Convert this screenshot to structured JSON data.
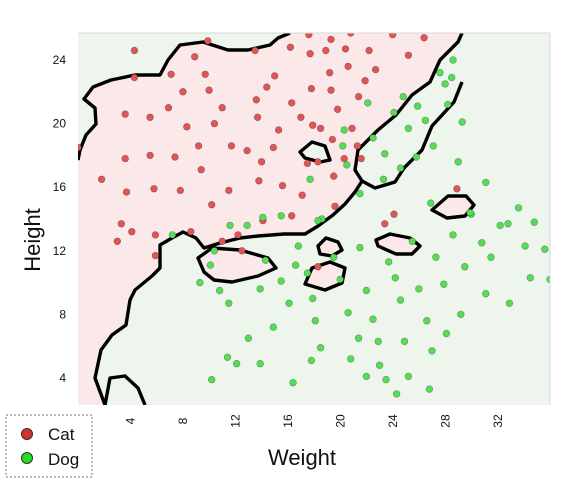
{
  "chart_data": {
    "type": "scatter",
    "xlabel": "Weight",
    "ylabel": "Height",
    "xlim": [
      0,
      36
    ],
    "ylim": [
      2.3,
      25.7
    ],
    "x_ticks": [
      4,
      8,
      12,
      16,
      20,
      24,
      28,
      32
    ],
    "y_ticks": [
      4,
      8,
      12,
      16,
      20,
      24
    ],
    "grid": false,
    "legend_position": "bottom-left",
    "colors": {
      "Cat": "#e05555",
      "Dog": "#55dd55",
      "cat_region": "#fbe9e9",
      "dog_region": "#edf5ec",
      "boundary": "#000000"
    },
    "series": [
      {
        "name": "Cat",
        "points": [
          [
            0,
            18.5
          ],
          [
            1.8,
            16.5
          ],
          [
            3,
            12.6
          ],
          [
            3.3,
            13.7
          ],
          [
            3.6,
            20.6
          ],
          [
            3.6,
            17.8
          ],
          [
            3.7,
            15.7
          ],
          [
            4.1,
            13.2
          ],
          [
            4.3,
            24.6
          ],
          [
            4.3,
            22.9
          ],
          [
            5.5,
            20.4
          ],
          [
            5.5,
            18.0
          ],
          [
            5.8,
            15.9
          ],
          [
            5.9,
            13.0
          ],
          [
            5.9,
            11.7
          ],
          [
            6.9,
            21.0
          ],
          [
            7.1,
            23.1
          ],
          [
            7.4,
            17.9
          ],
          [
            7.8,
            15.8
          ],
          [
            8.0,
            22.0
          ],
          [
            8.3,
            19.8
          ],
          [
            8.6,
            13.2
          ],
          [
            8.9,
            24.2
          ],
          [
            9.2,
            18.6
          ],
          [
            9.4,
            17.1
          ],
          [
            9.7,
            23.1
          ],
          [
            9.9,
            25.2
          ],
          [
            10.0,
            22.1
          ],
          [
            10.2,
            14.9
          ],
          [
            10.4,
            20.0
          ],
          [
            11.0,
            21.0
          ],
          [
            11.5,
            15.8
          ],
          [
            11.7,
            18.6
          ],
          [
            11.0,
            12.6
          ],
          [
            12.2,
            13.0
          ],
          [
            12.5,
            12.0
          ],
          [
            12.9,
            18.3
          ],
          [
            13.5,
            24.6
          ],
          [
            13.6,
            21.5
          ],
          [
            13.7,
            20.4
          ],
          [
            13.8,
            16.4
          ],
          [
            14.0,
            17.6
          ],
          [
            14.1,
            13.9
          ],
          [
            14.4,
            22.3
          ],
          [
            14.9,
            18.5
          ],
          [
            15.0,
            23.0
          ],
          [
            15.3,
            19.6
          ],
          [
            15.6,
            16.1
          ],
          [
            16.2,
            24.8
          ],
          [
            16.3,
            21.3
          ],
          [
            16.3,
            14.2
          ],
          [
            17.0,
            20.4
          ],
          [
            17.1,
            15.5
          ],
          [
            17.5,
            17.5
          ],
          [
            17.6,
            25.6
          ],
          [
            17.7,
            24.4
          ],
          [
            17.8,
            22.2
          ],
          [
            18.3,
            17.6
          ],
          [
            18.5,
            19.7
          ],
          [
            18.9,
            24.6
          ],
          [
            19.2,
            23.2
          ],
          [
            19.3,
            25.3
          ],
          [
            19.3,
            22.1
          ],
          [
            19.4,
            19.0
          ],
          [
            19.5,
            16.7
          ],
          [
            19.6,
            14.8
          ],
          [
            19.8,
            20.9
          ],
          [
            20.3,
            17.8
          ],
          [
            20.4,
            24.7
          ],
          [
            20.6,
            23.6
          ],
          [
            20.8,
            25.7
          ],
          [
            20.9,
            19.7
          ],
          [
            21.3,
            18.6
          ],
          [
            21.4,
            21.7
          ],
          [
            21.9,
            22.7
          ],
          [
            22.2,
            24.6
          ],
          [
            22.7,
            23.4
          ],
          [
            23.4,
            13.7
          ],
          [
            24.0,
            25.6
          ],
          [
            25.2,
            24.3
          ],
          [
            26.4,
            25.4
          ],
          [
            17.9,
            19.9
          ],
          [
            18.3,
            11.0
          ],
          [
            28.9,
            15.9
          ],
          [
            24.1,
            14.3
          ],
          [
            21.6,
            17.8
          ]
        ]
      },
      {
        "name": "Dog",
        "points": [
          [
            10.8,
            9.5
          ],
          [
            11.5,
            8.7
          ],
          [
            12.1,
            4.9
          ],
          [
            13.9,
            9.6
          ],
          [
            14.9,
            7.2
          ],
          [
            13.0,
            6.5
          ],
          [
            15.5,
            10.1
          ],
          [
            16.1,
            8.7
          ],
          [
            16.8,
            12.3
          ],
          [
            17.5,
            10.6
          ],
          [
            17.9,
            9.0
          ],
          [
            18.1,
            7.6
          ],
          [
            18.5,
            5.9
          ],
          [
            19.5,
            11.6
          ],
          [
            20.0,
            10.2
          ],
          [
            20.6,
            8.1
          ],
          [
            20.8,
            5.2
          ],
          [
            21.5,
            12.2
          ],
          [
            22.0,
            9.5
          ],
          [
            22.5,
            7.7
          ],
          [
            22.9,
            6.3
          ],
          [
            23.0,
            4.8
          ],
          [
            23.5,
            3.9
          ],
          [
            23.7,
            11.3
          ],
          [
            24.2,
            10.3
          ],
          [
            24.6,
            8.9
          ],
          [
            24.9,
            6.3
          ],
          [
            25.2,
            4.1
          ],
          [
            25.5,
            12.6
          ],
          [
            26.0,
            9.6
          ],
          [
            26.6,
            7.6
          ],
          [
            27.0,
            5.7
          ],
          [
            27.3,
            11.6
          ],
          [
            27.9,
            9.9
          ],
          [
            28.1,
            6.8
          ],
          [
            28.6,
            13.0
          ],
          [
            29.2,
            8.0
          ],
          [
            29.5,
            11.0
          ],
          [
            30.0,
            14.3
          ],
          [
            30.8,
            12.5
          ],
          [
            31.1,
            9.3
          ],
          [
            31.5,
            11.6
          ],
          [
            32.2,
            13.6
          ],
          [
            32.9,
            8.7
          ],
          [
            33.6,
            14.7
          ],
          [
            34.1,
            12.3
          ],
          [
            34.8,
            13.8
          ],
          [
            35.6,
            12.1
          ],
          [
            36.0,
            10.2
          ],
          [
            34.5,
            10.3
          ],
          [
            20.2,
            18.6
          ],
          [
            20.5,
            17.4
          ],
          [
            21.5,
            15.6
          ],
          [
            22.5,
            19.1
          ],
          [
            23.4,
            18.1
          ],
          [
            24.1,
            20.7
          ],
          [
            24.6,
            17.2
          ],
          [
            25.2,
            19.7
          ],
          [
            25.8,
            17.9
          ],
          [
            26.5,
            20.2
          ],
          [
            26.9,
            15.0
          ],
          [
            27.1,
            18.6
          ],
          [
            28.0,
            22.5
          ],
          [
            28.2,
            21.2
          ],
          [
            28.5,
            22.9
          ],
          [
            29.0,
            17.6
          ],
          [
            29.3,
            20.1
          ],
          [
            29.9,
            14.4
          ],
          [
            31.1,
            16.3
          ],
          [
            32.8,
            13.7
          ],
          [
            28.6,
            24.0
          ],
          [
            27.6,
            23.2
          ],
          [
            24.8,
            21.7
          ],
          [
            25.9,
            21.1
          ],
          [
            23.3,
            16.5
          ],
          [
            22.1,
            21.3
          ],
          [
            20.3,
            19.6
          ],
          [
            17.7,
            16.5
          ],
          [
            18.6,
            14.0
          ],
          [
            18.3,
            13.9
          ],
          [
            14.3,
            11.4
          ],
          [
            16.6,
            11.1
          ],
          [
            15.5,
            14.2
          ],
          [
            14.1,
            14.1
          ],
          [
            12.9,
            13.6
          ],
          [
            11.6,
            13.6
          ],
          [
            10.4,
            12.0
          ],
          [
            10.1,
            11.1
          ],
          [
            9.3,
            10.0
          ],
          [
            10.2,
            3.9
          ],
          [
            11.4,
            5.3
          ],
          [
            13.9,
            4.9
          ],
          [
            16.4,
            3.7
          ],
          [
            17.8,
            5.1
          ],
          [
            21.4,
            6.5
          ],
          [
            22.0,
            4.1
          ],
          [
            24.3,
            3.0
          ],
          [
            26.8,
            3.3
          ],
          [
            7.2,
            13.0
          ]
        ]
      }
    ]
  }
}
